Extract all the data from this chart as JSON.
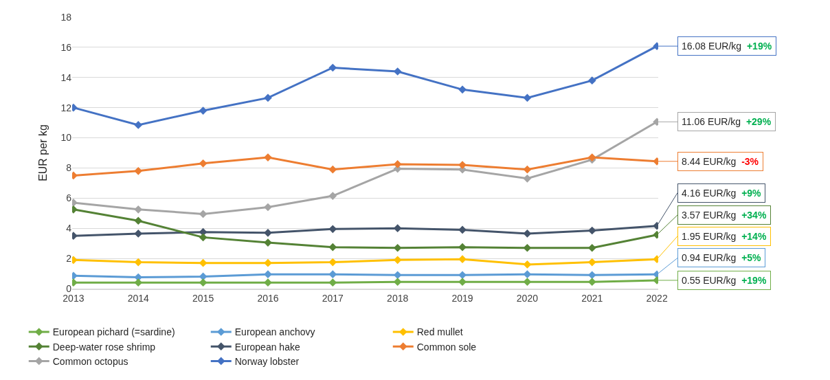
{
  "chart_data": {
    "type": "line",
    "ylabel": "EUR per kg",
    "categories": [
      "2013",
      "2014",
      "2015",
      "2016",
      "2017",
      "2018",
      "2019",
      "2020",
      "2021",
      "2022"
    ],
    "series": [
      {
        "name": "European pichard (=sardine)",
        "color": "#70ad47",
        "values": [
          0.4,
          0.4,
          0.4,
          0.4,
          0.4,
          0.45,
          0.45,
          0.45,
          0.45,
          0.55
        ]
      },
      {
        "name": "European anchovy",
        "color": "#5b9bd5",
        "values": [
          0.85,
          0.75,
          0.8,
          0.95,
          0.95,
          0.9,
          0.9,
          0.95,
          0.9,
          0.94
        ]
      },
      {
        "name": "Red mullet",
        "color": "#ffc000",
        "values": [
          1.9,
          1.75,
          1.7,
          1.7,
          1.75,
          1.9,
          1.95,
          1.6,
          1.75,
          1.95
        ]
      },
      {
        "name": "Deep-water rose shrimp",
        "color": "#548235",
        "values": [
          5.25,
          4.5,
          3.4,
          3.05,
          2.75,
          2.7,
          2.75,
          2.7,
          2.7,
          3.57
        ]
      },
      {
        "name": "European hake",
        "color": "#44546a",
        "values": [
          3.5,
          3.65,
          3.75,
          3.7,
          3.95,
          4.0,
          3.9,
          3.65,
          3.85,
          4.16
        ]
      },
      {
        "name": "Common sole",
        "color": "#ed7d31",
        "values": [
          7.5,
          7.8,
          8.3,
          8.7,
          7.9,
          8.25,
          8.2,
          7.9,
          8.7,
          8.44
        ]
      },
      {
        "name": "Common octopus",
        "color": "#a5a5a5",
        "values": [
          5.7,
          5.25,
          4.95,
          5.4,
          6.15,
          7.95,
          7.9,
          7.3,
          8.55,
          11.06
        ]
      },
      {
        "name": "Norway lobster",
        "color": "#4472c4",
        "values": [
          12.0,
          10.85,
          11.8,
          12.65,
          14.65,
          14.4,
          13.2,
          12.65,
          13.8,
          16.08
        ]
      }
    ],
    "ylim": [
      0,
      18
    ],
    "yticks": [
      0,
      2,
      4,
      6,
      8,
      10,
      12,
      14,
      16,
      18
    ],
    "grid": "y",
    "legend": "bottom",
    "marker": "diamond",
    "line_style": "solid",
    "annotations": [
      {
        "text": "16.08 EUR/kg +19%",
        "x": "2022",
        "y": 16.08
      },
      {
        "text": "11.06 EUR/kg +29%",
        "x": "2022",
        "y": 11.06
      },
      {
        "text": "8.44 EUR/kg -3%",
        "x": "2022",
        "y": 8.44
      },
      {
        "text": "4.16 EUR/kg +9%",
        "x": "2022",
        "y": 4.16
      },
      {
        "text": "3.57 EUR/kg +34%",
        "x": "2022",
        "y": 3.57
      },
      {
        "text": "1.95 EUR/kg +14%",
        "x": "2022",
        "y": 1.95
      },
      {
        "text": "0.94 EUR/kg +5%",
        "x": "2022",
        "y": 0.94
      },
      {
        "text": "0.55 EUR/kg +19%",
        "x": "2022",
        "y": 0.55
      }
    ]
  }
}
